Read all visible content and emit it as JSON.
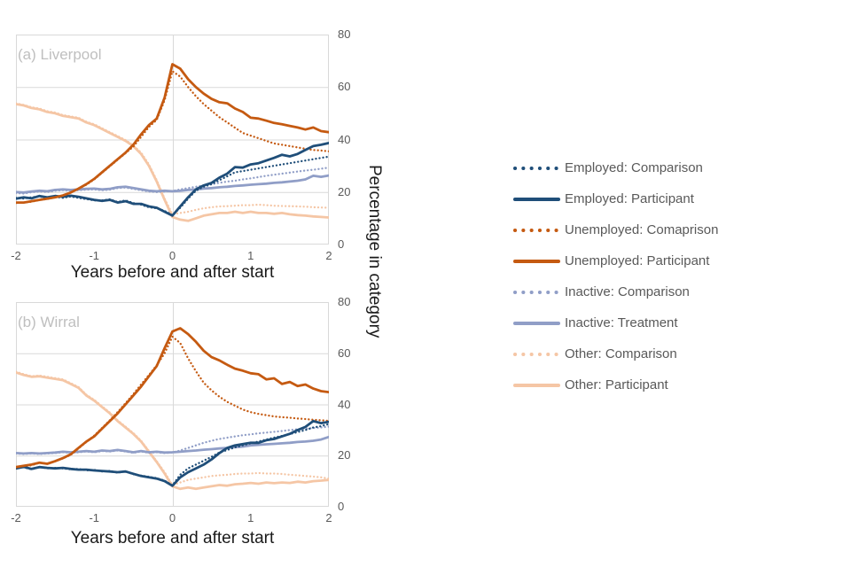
{
  "colors": {
    "navy": "#1F4E79",
    "orange": "#C55A11",
    "periwinkle": "#909EC7",
    "peach": "#F5C6A5",
    "grid": "#D9D9D9",
    "tick_text": "#595959",
    "axis_title_text": "#1A1A1A",
    "panel_label_text": "#BFBFBF",
    "legend_text": "#595959"
  },
  "shared_y_label": "Percentage in category",
  "legend": {
    "items": [
      {
        "label": "Employed: Comparison",
        "color": "#1F4E79",
        "style": "dotted"
      },
      {
        "label": "Employed: Participant",
        "color": "#1F4E79",
        "style": "solid"
      },
      {
        "label": "Unemployed: Comaprison",
        "color": "#C55A11",
        "style": "dotted"
      },
      {
        "label": "Unemployed: Participant",
        "color": "#C55A11",
        "style": "solid"
      },
      {
        "label": "Inactive: Comparison",
        "color": "#909EC7",
        "style": "dotted"
      },
      {
        "label": "Inactive: Treatment",
        "color": "#909EC7",
        "style": "solid"
      },
      {
        "label": "Other: Comparison",
        "color": "#F5C6A5",
        "style": "dotted"
      },
      {
        "label": "Other: Participant",
        "color": "#F5C6A5",
        "style": "solid"
      }
    ]
  },
  "chart_data": [
    {
      "type": "line",
      "title": "(a) Liverpool",
      "xlabel": "Years before and after start",
      "ylabel": "Percentage in category",
      "xlim": [
        -2,
        2
      ],
      "ylim": [
        0,
        80
      ],
      "x_ticks": [
        -2,
        -1,
        0,
        1,
        2
      ],
      "y_ticks": [
        80,
        60,
        40,
        20,
        0
      ],
      "gridlines_y": [
        20,
        40,
        60
      ],
      "x_zero_line": 0,
      "grid": true,
      "legend_position": "right-of-figure",
      "x_start": -2,
      "x_step": 0.1,
      "series": [
        {
          "name": "Other: Comparison",
          "color": "#F5C6A5",
          "style": "dotted",
          "values": [
            53.8,
            53.2,
            52.3,
            51.8,
            50.8,
            50.3,
            49.3,
            48.8,
            48.3,
            46.8,
            45.8,
            44.3,
            42.8,
            41.3,
            39.8,
            37.8,
            35,
            30.5,
            24.5,
            17.5,
            11.5,
            12,
            12.5,
            13.2,
            13.8,
            14.2,
            14.5,
            14.6,
            14.8,
            15,
            15,
            15.2,
            15,
            14.8,
            14.7,
            14.6,
            14.5,
            14.4,
            14.2,
            14.1,
            14
          ]
        },
        {
          "name": "Other: Participant",
          "color": "#F5C6A5",
          "style": "solid",
          "values": [
            53.5,
            53,
            52,
            51.5,
            50.5,
            50,
            49,
            48.5,
            48,
            46.5,
            45.5,
            44,
            42.5,
            41,
            39.5,
            37.5,
            34.5,
            30,
            24,
            17,
            10.5,
            9.5,
            9,
            10,
            11,
            11.5,
            12,
            12,
            12.5,
            12,
            12.5,
            12,
            12,
            11.7,
            12,
            11.5,
            11.2,
            11,
            10.7,
            10.5,
            10.3
          ]
        },
        {
          "name": "Inactive: Comparison",
          "color": "#909EC7",
          "style": "dotted",
          "values": [
            19.6,
            19.4,
            19.9,
            20.2,
            20,
            20.5,
            20.7,
            20.5,
            20.7,
            20.9,
            21,
            20.7,
            20.9,
            21.5,
            21.7,
            21.2,
            20.7,
            20.2,
            20,
            20.2,
            20.4,
            21,
            21.5,
            22,
            22.5,
            23,
            23.5,
            24,
            24.3,
            24.8,
            25.2,
            25.7,
            26.2,
            26.6,
            27,
            27.4,
            27.8,
            28.2,
            28.5,
            28.9,
            29.3
          ]
        },
        {
          "name": "Inactive: Treatment",
          "color": "#909EC7",
          "style": "solid",
          "values": [
            20,
            19.8,
            20.2,
            20.5,
            20.3,
            20.8,
            21,
            20.8,
            21,
            21.2,
            21.3,
            21,
            21.2,
            21.8,
            22,
            21.5,
            21,
            20.5,
            20.3,
            20.5,
            20.3,
            20.5,
            20.8,
            21,
            21.3,
            21.5,
            21.8,
            22,
            22.3,
            22.5,
            22.8,
            23,
            23.2,
            23.5,
            23.7,
            24,
            24.3,
            24.8,
            26.2,
            25.8,
            26.3
          ]
        },
        {
          "name": "Unemployed: Comaprison",
          "color": "#C55A11",
          "style": "dotted",
          "values": [
            15.8,
            16,
            16.3,
            17,
            17.3,
            18,
            18.7,
            19.8,
            21.3,
            22.8,
            24.8,
            27.3,
            29.8,
            32.3,
            34.8,
            37.3,
            41,
            44.8,
            47.5,
            55,
            66,
            64,
            60,
            56.5,
            53.5,
            51,
            48.5,
            46.5,
            44.5,
            42.5,
            41.5,
            40.5,
            39.5,
            38.5,
            38,
            37.5,
            37,
            36.5,
            36,
            35.8,
            35.5
          ]
        },
        {
          "name": "Employed: Comparison",
          "color": "#1F4E79",
          "style": "dotted",
          "values": [
            17.8,
            17.5,
            18,
            18.3,
            17.8,
            18.2,
            17.8,
            18.3,
            17.8,
            17.3,
            16.8,
            16.8,
            17.2,
            16.2,
            16.8,
            15.8,
            15.2,
            14.2,
            13.8,
            12.8,
            11.2,
            14,
            17.5,
            20.5,
            22,
            23,
            24.5,
            26,
            27.5,
            28,
            28.5,
            29,
            29.5,
            30,
            30.5,
            31,
            31.5,
            32,
            32.5,
            33,
            33.5
          ]
        },
        {
          "name": "Employed: Participant",
          "color": "#1F4E79",
          "style": "solid",
          "values": [
            17.5,
            18,
            17.6,
            18.5,
            18,
            18.5,
            18.2,
            18.6,
            18.2,
            17.6,
            17,
            16.6,
            17,
            16,
            16.5,
            15.5,
            15.5,
            14.5,
            14,
            12.5,
            11,
            14.5,
            18,
            21,
            22.5,
            23.5,
            25.5,
            27,
            29.5,
            29.3,
            30.5,
            31,
            32,
            33,
            34.2,
            33.6,
            34.5,
            36,
            37.5,
            38,
            38.7
          ]
        },
        {
          "name": "Unemployed: Participant",
          "color": "#C55A11",
          "style": "solid",
          "values": [
            16,
            16,
            16.5,
            17,
            17.5,
            18,
            18.7,
            19.8,
            21.3,
            23,
            25,
            27.5,
            30,
            32.5,
            35,
            38,
            42,
            45.5,
            48,
            56,
            68.7,
            67,
            63,
            60,
            57.5,
            55.5,
            54.2,
            53.8,
            51.8,
            50.5,
            48.3,
            48,
            47.2,
            46.3,
            45.8,
            45.2,
            44.6,
            43.8,
            44.6,
            43.2,
            42.8
          ]
        }
      ]
    },
    {
      "type": "line",
      "title": "(b) Wirral",
      "xlabel": "Years before and after start",
      "ylabel": "Percentage in category",
      "xlim": [
        -2,
        2
      ],
      "ylim": [
        0,
        80
      ],
      "x_ticks": [
        -2,
        -1,
        0,
        1,
        2
      ],
      "y_ticks": [
        80,
        60,
        40,
        20,
        0
      ],
      "gridlines_y": [
        20,
        40,
        60
      ],
      "x_zero_line": 0,
      "grid": true,
      "legend_position": "right-of-figure",
      "x_start": -2,
      "x_step": 0.1,
      "series": [
        {
          "name": "Other: Comparison",
          "color": "#F5C6A5",
          "style": "dotted",
          "values": [
            52.8,
            51.8,
            51,
            51.3,
            50.8,
            50.3,
            49.8,
            48.3,
            46.8,
            43.8,
            41.8,
            39.3,
            36.8,
            33.8,
            31.3,
            28.8,
            25.8,
            21.8,
            17.8,
            13.5,
            8.5,
            9.5,
            10.5,
            11,
            11.5,
            12,
            12.3,
            12.5,
            12.8,
            13,
            13,
            13.2,
            13,
            13,
            12.8,
            12.5,
            12.3,
            12,
            11.8,
            11.5,
            11
          ]
        },
        {
          "name": "Other: Participant",
          "color": "#F5C6A5",
          "style": "solid",
          "values": [
            52.5,
            51.5,
            50.8,
            51,
            50.5,
            50,
            49.5,
            48,
            46.5,
            43.5,
            41.5,
            39,
            36.5,
            33.5,
            31,
            28.5,
            25.5,
            21.5,
            17.5,
            13,
            8,
            7,
            7.5,
            7,
            7.5,
            8,
            8.5,
            8.2,
            8.8,
            9,
            9.3,
            9,
            9.5,
            9.2,
            9.5,
            9.3,
            9.8,
            9.5,
            10,
            10.2,
            10.5
          ]
        },
        {
          "name": "Inactive: Comparison",
          "color": "#909EC7",
          "style": "dotted",
          "values": [
            20.8,
            20.6,
            20.8,
            20.6,
            20.8,
            21,
            21.3,
            21.1,
            21.3,
            21.6,
            21.3,
            21.8,
            21.6,
            22,
            21.6,
            21.1,
            21.6,
            21.1,
            21.3,
            21,
            21.2,
            22,
            23,
            24,
            25,
            25.8,
            26.5,
            27,
            27.5,
            28,
            28.3,
            28.7,
            29,
            29.3,
            29.6,
            30,
            30.3,
            30.5,
            30.8,
            31,
            31.3
          ]
        },
        {
          "name": "Inactive: Treatment",
          "color": "#909EC7",
          "style": "solid",
          "values": [
            21,
            20.8,
            21,
            20.8,
            21,
            21.2,
            21.5,
            21.3,
            21.5,
            21.8,
            21.5,
            22,
            21.8,
            22.2,
            21.8,
            21.3,
            21.8,
            21.3,
            21.5,
            21.2,
            21.3,
            21.5,
            21.8,
            22,
            22.3,
            22.5,
            22.8,
            23,
            23.3,
            23.5,
            24,
            24.2,
            24.4,
            24.6,
            24.8,
            25,
            25.3,
            25.5,
            25.8,
            26.3,
            27.3
          ]
        },
        {
          "name": "Unemployed: Comaprison",
          "color": "#C55A11",
          "style": "dotted",
          "values": [
            15.3,
            15.8,
            16.2,
            17.2,
            16.9,
            17.8,
            18.9,
            20.3,
            22.8,
            25.3,
            27.8,
            30.8,
            33.8,
            37,
            40.5,
            44,
            47.8,
            51.5,
            55.3,
            60,
            66.5,
            64,
            58,
            53,
            48.5,
            45.5,
            43,
            41,
            39.5,
            38,
            37,
            36.3,
            35.8,
            35.3,
            35,
            34.8,
            34.5,
            34.3,
            34,
            33.8,
            33.6
          ]
        },
        {
          "name": "Employed: Comparison",
          "color": "#1F4E79",
          "style": "dotted",
          "values": [
            15.2,
            15.4,
            14.6,
            15.6,
            15,
            15.2,
            15,
            14.6,
            14.8,
            14.2,
            14.4,
            13.8,
            14,
            13.3,
            13.9,
            12.7,
            12.2,
            11.7,
            11.2,
            10.2,
            8.3,
            12.5,
            15,
            16.5,
            18,
            19.5,
            21.2,
            22.2,
            23.2,
            24,
            24.8,
            25.5,
            26.3,
            27,
            27.7,
            28.4,
            29.2,
            30,
            31,
            31.5,
            32.3
          ]
        },
        {
          "name": "Employed: Participant",
          "color": "#1F4E79",
          "style": "solid",
          "values": [
            15,
            15.6,
            14.8,
            15.5,
            15.2,
            15,
            15.2,
            14.8,
            14.5,
            14.5,
            14.2,
            14,
            13.8,
            13.5,
            13.8,
            12.9,
            12,
            11.5,
            11,
            10,
            8.2,
            11.5,
            13.5,
            15,
            16.5,
            18.5,
            21,
            23,
            24,
            24.5,
            25,
            25,
            26,
            26.5,
            27.5,
            28.5,
            30,
            31.2,
            33.5,
            32.7,
            33.2
          ]
        },
        {
          "name": "Unemployed: Participant",
          "color": "#C55A11",
          "style": "solid",
          "values": [
            15.5,
            16,
            16.5,
            17.2,
            16.8,
            17.8,
            19,
            20.5,
            23,
            25.5,
            27.5,
            30.5,
            33.5,
            36.5,
            40,
            43.5,
            47,
            51,
            55,
            62,
            68.5,
            69.8,
            67.5,
            64.5,
            61,
            58.5,
            57.2,
            55.5,
            54,
            53.2,
            52.2,
            51.8,
            49.8,
            50.2,
            48,
            48.8,
            47.2,
            47.8,
            46.2,
            45.2,
            44.8
          ]
        }
      ]
    }
  ]
}
